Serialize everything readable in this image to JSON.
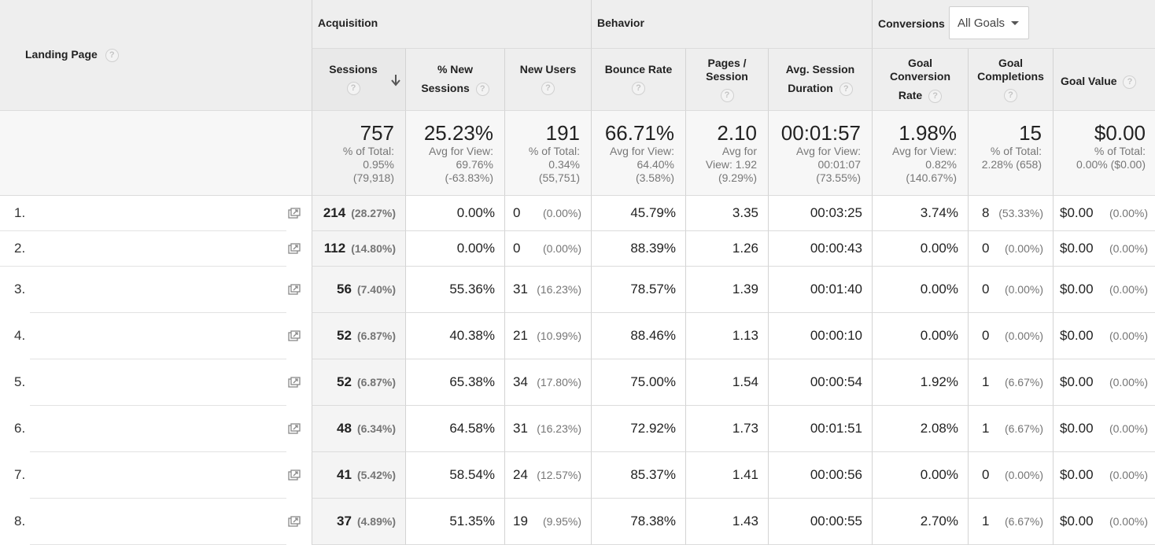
{
  "header": {
    "landing_page": "Landing Page",
    "acquisition": "Acquisition",
    "behavior": "Behavior",
    "conversions": "Conversions",
    "goals_select": "All Goals"
  },
  "columns": {
    "sessions": "Sessions",
    "pct_new_sessions": "% New Sessions",
    "new_users": "New Users",
    "bounce_rate": "Bounce Rate",
    "pages_session_1": "Pages /",
    "pages_session_2": "Session",
    "avg_session_duration": "Avg. Session Duration",
    "goal_conv_rate": "Goal Conversion Rate",
    "goal_completions": "Goal Completions",
    "goal_value": "Goal Value"
  },
  "totals": {
    "sessions": {
      "main": "757",
      "sub": [
        "% of Total:",
        "0.95%",
        "(79,918)"
      ]
    },
    "pct_new": {
      "main": "25.23%",
      "sub": [
        "Avg for View:",
        "69.76%",
        "(-63.83%)"
      ]
    },
    "new_users": {
      "main": "191",
      "sub": [
        "% of Total:",
        "0.34%",
        "(55,751)"
      ]
    },
    "bounce": {
      "main": "66.71%",
      "sub": [
        "Avg for View:",
        "64.40%",
        "(3.58%)"
      ]
    },
    "pages": {
      "main": "2.10",
      "sub": [
        "Avg for",
        "View: 1.92",
        "(9.29%)"
      ]
    },
    "duration": {
      "main": "00:01:57",
      "sub": [
        "Avg for View:",
        "00:01:07",
        "(73.55%)"
      ]
    },
    "conv_rate": {
      "main": "1.98%",
      "sub": [
        "Avg for View:",
        "0.82%",
        "(140.67%)"
      ]
    },
    "completions": {
      "main": "15",
      "sub": [
        "% of Total:",
        "2.28% (658)"
      ]
    },
    "value": {
      "main": "$0.00",
      "sub": [
        "% of Total:",
        "0.00% ($0.00)"
      ]
    }
  },
  "rows": [
    {
      "num": "1.",
      "sessions": "214",
      "sessions_pct": "(28.27%)",
      "pct_new": "0.00%",
      "new_users": "0",
      "new_users_pct": "(0.00%)",
      "bounce": "45.79%",
      "pages": "3.35",
      "duration": "00:03:25",
      "conv_rate": "3.74%",
      "completions": "8",
      "completions_pct": "(53.33%)",
      "value": "$0.00",
      "value_pct": "(0.00%)"
    },
    {
      "num": "2.",
      "sessions": "112",
      "sessions_pct": "(14.80%)",
      "pct_new": "0.00%",
      "new_users": "0",
      "new_users_pct": "(0.00%)",
      "bounce": "88.39%",
      "pages": "1.26",
      "duration": "00:00:43",
      "conv_rate": "0.00%",
      "completions": "0",
      "completions_pct": "(0.00%)",
      "value": "$0.00",
      "value_pct": "(0.00%)"
    },
    {
      "num": "3.",
      "sessions": "56",
      "sessions_pct": "(7.40%)",
      "pct_new": "55.36%",
      "new_users": "31",
      "new_users_pct": "(16.23%)",
      "bounce": "78.57%",
      "pages": "1.39",
      "duration": "00:01:40",
      "conv_rate": "0.00%",
      "completions": "0",
      "completions_pct": "(0.00%)",
      "value": "$0.00",
      "value_pct": "(0.00%)"
    },
    {
      "num": "4.",
      "sessions": "52",
      "sessions_pct": "(6.87%)",
      "pct_new": "40.38%",
      "new_users": "21",
      "new_users_pct": "(10.99%)",
      "bounce": "88.46%",
      "pages": "1.13",
      "duration": "00:00:10",
      "conv_rate": "0.00%",
      "completions": "0",
      "completions_pct": "(0.00%)",
      "value": "$0.00",
      "value_pct": "(0.00%)"
    },
    {
      "num": "5.",
      "sessions": "52",
      "sessions_pct": "(6.87%)",
      "pct_new": "65.38%",
      "new_users": "34",
      "new_users_pct": "(17.80%)",
      "bounce": "75.00%",
      "pages": "1.54",
      "duration": "00:00:54",
      "conv_rate": "1.92%",
      "completions": "1",
      "completions_pct": "(6.67%)",
      "value": "$0.00",
      "value_pct": "(0.00%)"
    },
    {
      "num": "6.",
      "sessions": "48",
      "sessions_pct": "(6.34%)",
      "pct_new": "64.58%",
      "new_users": "31",
      "new_users_pct": "(16.23%)",
      "bounce": "72.92%",
      "pages": "1.73",
      "duration": "00:01:51",
      "conv_rate": "2.08%",
      "completions": "1",
      "completions_pct": "(6.67%)",
      "value": "$0.00",
      "value_pct": "(0.00%)"
    },
    {
      "num": "7.",
      "sessions": "41",
      "sessions_pct": "(5.42%)",
      "pct_new": "58.54%",
      "new_users": "24",
      "new_users_pct": "(12.57%)",
      "bounce": "85.37%",
      "pages": "1.41",
      "duration": "00:00:56",
      "conv_rate": "0.00%",
      "completions": "0",
      "completions_pct": "(0.00%)",
      "value": "$0.00",
      "value_pct": "(0.00%)"
    },
    {
      "num": "8.",
      "sessions": "37",
      "sessions_pct": "(4.89%)",
      "pct_new": "51.35%",
      "new_users": "19",
      "new_users_pct": "(9.95%)",
      "bounce": "78.38%",
      "pages": "1.43",
      "duration": "00:00:55",
      "conv_rate": "2.70%",
      "completions": "1",
      "completions_pct": "(6.67%)",
      "value": "$0.00",
      "value_pct": "(0.00%)"
    }
  ],
  "icons": {
    "help": "question-mark",
    "sort": "arrow-down",
    "popout": "open-in-new-window",
    "dropdown": "caret-down"
  }
}
